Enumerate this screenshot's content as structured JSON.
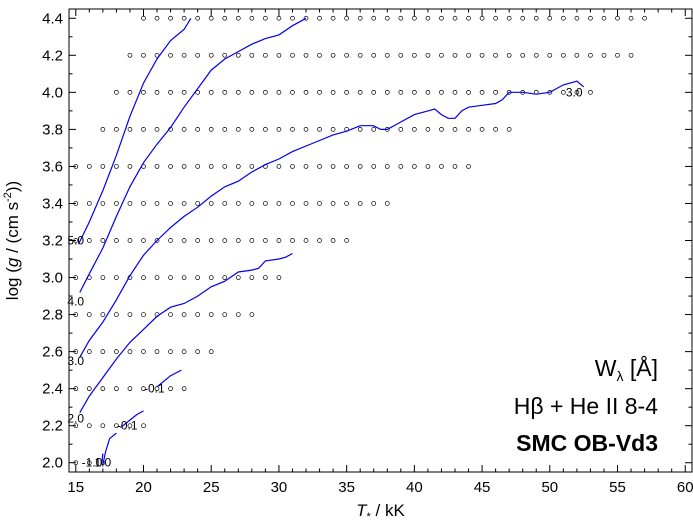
{
  "chart_data": {
    "type": "contour",
    "xlabel_parts": {
      "main": "T",
      "sub": "*",
      "unit": " / kK"
    },
    "ylabel_parts": {
      "pre": "log (",
      "g": "g",
      "mid": " / (cm s",
      "sup": "-2",
      "post": "))"
    },
    "xlim": [
      14.5,
      60.5
    ],
    "ylim": [
      1.95,
      4.45
    ],
    "x_ticks": [
      15,
      20,
      25,
      30,
      35,
      40,
      45,
      50,
      55,
      60
    ],
    "y_ticks": [
      2.0,
      2.2,
      2.4,
      2.6,
      2.8,
      3.0,
      3.2,
      3.4,
      3.6,
      3.8,
      4.0,
      4.2,
      4.4
    ],
    "x_tick_labels": [
      "15",
      "20",
      "25",
      "30",
      "35",
      "40",
      "45",
      "50",
      "55",
      "60"
    ],
    "y_tick_labels": [
      "2.0",
      "2.2",
      "2.4",
      "2.6",
      "2.8",
      "3.0",
      "3.2",
      "3.4",
      "3.6",
      "3.8",
      "4.0",
      "4.2",
      "4.4"
    ],
    "grid": false,
    "annotation": {
      "line1_main": "W",
      "line1_sub": "λ",
      "line1_unit": " [Å]",
      "line2": "Hβ + He II 8-4",
      "line3": "SMC OB-Vd3"
    },
    "model_grid": [
      {
        "logg": 4.4,
        "teff_min": 20,
        "teff_max": 57
      },
      {
        "logg": 4.2,
        "teff_min": 19,
        "teff_max": 56
      },
      {
        "logg": 4.0,
        "teff_min": 18,
        "teff_max": 53
      },
      {
        "logg": 3.8,
        "teff_min": 17,
        "teff_max": 47
      },
      {
        "logg": 3.6,
        "teff_min": 15,
        "teff_max": 44
      },
      {
        "logg": 3.4,
        "teff_min": 15,
        "teff_max": 38
      },
      {
        "logg": 3.2,
        "teff_min": 15,
        "teff_max": 35
      },
      {
        "logg": 3.0,
        "teff_min": 15,
        "teff_max": 30
      },
      {
        "logg": 2.8,
        "teff_min": 15,
        "teff_max": 28
      },
      {
        "logg": 2.6,
        "teff_min": 15,
        "teff_max": 25
      },
      {
        "logg": 2.4,
        "teff_min": 15,
        "teff_max": 23
      },
      {
        "logg": 2.2,
        "teff_min": 15,
        "teff_max": 20
      },
      {
        "logg": 2.0,
        "teff_min": 15,
        "teff_max": 17
      }
    ],
    "contours": [
      {
        "level": "5.0",
        "label": "5.0",
        "label_at": [
          15,
          3.2
        ],
        "points": [
          [
            15.2,
            3.18
          ],
          [
            16,
            3.3
          ],
          [
            17,
            3.47
          ],
          [
            18,
            3.66
          ],
          [
            19,
            3.87
          ],
          [
            20,
            4.05
          ],
          [
            21,
            4.18
          ],
          [
            22,
            4.28
          ],
          [
            23,
            4.34
          ],
          [
            23.5,
            4.4
          ]
        ]
      },
      {
        "level": "4.0",
        "label": "4.0",
        "label_at": [
          15,
          2.87
        ],
        "points": [
          [
            15.3,
            2.92
          ],
          [
            16,
            3.02
          ],
          [
            17,
            3.16
          ],
          [
            18,
            3.33
          ],
          [
            19,
            3.49
          ],
          [
            20,
            3.62
          ],
          [
            21,
            3.72
          ],
          [
            22,
            3.81
          ],
          [
            23,
            3.92
          ],
          [
            24,
            4.02
          ],
          [
            25,
            4.12
          ],
          [
            26,
            4.18
          ],
          [
            27,
            4.22
          ],
          [
            28,
            4.26
          ],
          [
            29,
            4.29
          ],
          [
            30,
            4.31
          ],
          [
            31,
            4.36
          ],
          [
            32,
            4.4
          ]
        ]
      },
      {
        "level": "3.0",
        "label": "3.0",
        "label_at": [
          15,
          2.55
        ],
        "points": [
          [
            15.3,
            2.57
          ],
          [
            16,
            2.66
          ],
          [
            17,
            2.76
          ],
          [
            18,
            2.88
          ],
          [
            19,
            3.01
          ],
          [
            20,
            3.12
          ],
          [
            21,
            3.2
          ],
          [
            22,
            3.27
          ],
          [
            23,
            3.33
          ],
          [
            24,
            3.38
          ],
          [
            25,
            3.44
          ],
          [
            26,
            3.49
          ],
          [
            27,
            3.52
          ],
          [
            28,
            3.57
          ],
          [
            29,
            3.61
          ],
          [
            30,
            3.64
          ],
          [
            31,
            3.68
          ],
          [
            32,
            3.71
          ],
          [
            33,
            3.74
          ],
          [
            34,
            3.77
          ],
          [
            35,
            3.79
          ],
          [
            36,
            3.82
          ],
          [
            37,
            3.82
          ],
          [
            37.5,
            3.8
          ],
          [
            38,
            3.8
          ],
          [
            39,
            3.84
          ],
          [
            40,
            3.88
          ],
          [
            41,
            3.9
          ],
          [
            41.5,
            3.91
          ],
          [
            42,
            3.88
          ],
          [
            42.5,
            3.86
          ],
          [
            43,
            3.86
          ],
          [
            43.5,
            3.9
          ],
          [
            44,
            3.92
          ],
          [
            45,
            3.93
          ],
          [
            46,
            3.94
          ],
          [
            46.5,
            3.96
          ],
          [
            47,
            4.0
          ],
          [
            48,
            4.0
          ],
          [
            49,
            3.99
          ],
          [
            50,
            4.0
          ],
          [
            51,
            4.04
          ],
          [
            52,
            4.06
          ],
          [
            52.5,
            4.03
          ]
        ]
      },
      {
        "level": "2.0",
        "label": "2.0",
        "label_at": [
          15,
          2.24
        ],
        "points": [
          [
            15.3,
            2.27
          ],
          [
            16,
            2.36
          ],
          [
            17,
            2.46
          ],
          [
            18,
            2.56
          ],
          [
            19,
            2.65
          ],
          [
            20,
            2.72
          ],
          [
            21,
            2.79
          ],
          [
            22,
            2.84
          ],
          [
            23,
            2.86
          ],
          [
            24,
            2.9
          ],
          [
            25,
            2.95
          ],
          [
            26,
            2.98
          ],
          [
            27,
            3.03
          ],
          [
            28,
            3.04
          ],
          [
            28.5,
            3.05
          ],
          [
            29,
            3.09
          ],
          [
            30,
            3.1
          ],
          [
            30.5,
            3.11
          ],
          [
            31,
            3.13
          ]
        ]
      },
      {
        "level": "1.0",
        "label": "1.0",
        "label_at": [
          17,
          2.0
        ],
        "points": [
          [
            17,
            1.99
          ],
          [
            17.2,
            2.06
          ],
          [
            17.5,
            2.13
          ],
          [
            18,
            2.16
          ]
        ]
      },
      {
        "level": "-0.1",
        "label": "-0.1",
        "label_at": [
          18.8,
          2.2
        ],
        "points": [
          [
            18.3,
            2.19
          ],
          [
            19,
            2.23
          ],
          [
            19.5,
            2.26
          ],
          [
            20,
            2.28
          ]
        ]
      },
      {
        "level": "-0.1",
        "label": "-0.1",
        "label_at": [
          20.8,
          2.4
        ],
        "points": [
          [
            21,
            2.41
          ],
          [
            22,
            2.47
          ],
          [
            22.8,
            2.5
          ]
        ]
      },
      {
        "level": "-1.0",
        "label": "-1.0",
        "label_at": [
          16.2,
          2.0
        ],
        "points": [
          [
            16.9,
            1.99
          ],
          [
            17,
            2.05
          ]
        ]
      },
      {
        "level": "3.0",
        "label": "3.0",
        "label_at": [
          51.8,
          4.0
        ],
        "points": []
      }
    ]
  }
}
